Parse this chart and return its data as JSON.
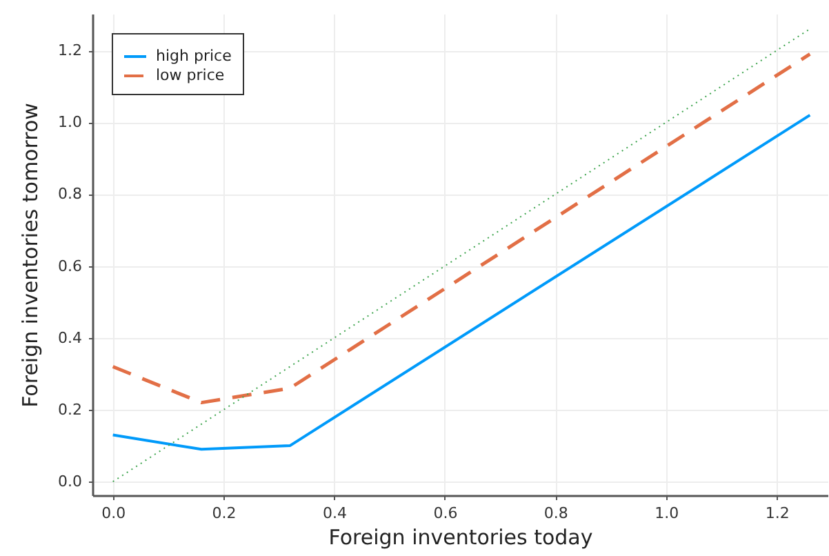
{
  "chart_data": {
    "type": "line",
    "xlabel": "Foreign inventories today",
    "ylabel": "Foreign inventories tomorrow",
    "x": [
      0,
      0.16,
      0.32,
      1.26
    ],
    "xlim": [
      -0.037,
      1.292
    ],
    "ylim": [
      -0.038,
      1.302
    ],
    "xticks": [
      {
        "value": 0,
        "label": "0.0"
      },
      0.2,
      0.4,
      0.6,
      0.8,
      {
        "value": 1,
        "label": "1.0"
      },
      1.2
    ],
    "yticks": [
      {
        "value": 0,
        "label": "0.0"
      },
      0.2,
      0.4,
      0.6,
      0.8,
      {
        "value": 1,
        "label": "1.0"
      },
      1.2
    ],
    "grid": true,
    "legend": "top left",
    "series": [
      {
        "name": "high price",
        "color": "#009afa",
        "line_style": "solid",
        "values": [
          0.13,
          0.09,
          0.1,
          1.02
        ]
      },
      {
        "name": "low price",
        "color": "#e26f46",
        "line_style": "dashed",
        "values": [
          0.32,
          0.22,
          0.26,
          1.19
        ]
      },
      {
        "type": "line",
        "color": "#3da44d",
        "line_style": "dotted",
        "x": [
          0,
          1.26
        ],
        "values": [
          0,
          1.26
        ]
      }
    ]
  }
}
